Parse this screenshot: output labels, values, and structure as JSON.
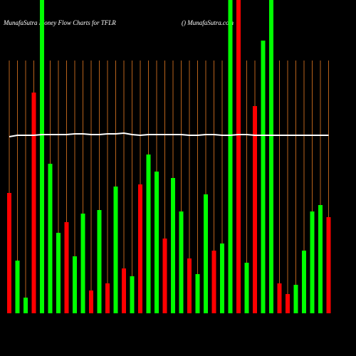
{
  "chart_data": {
    "type": "bar",
    "title": "MunafaSutra  Money Flow  Charts for TFLR",
    "subtitle": "() MunafaSutra.com",
    "categories": [
      null,
      null,
      null,
      null,
      null,
      null,
      null,
      null,
      null,
      null,
      null,
      null,
      null,
      null,
      null,
      null,
      null,
      null,
      null,
      null,
      null,
      null,
      null,
      null,
      null,
      null,
      null,
      null,
      null,
      null,
      null,
      null,
      null,
      null,
      null,
      null,
      null,
      null,
      null,
      null
    ],
    "values": [
      169,
      74,
      22,
      310,
      460,
      210,
      113,
      128,
      80,
      140,
      32,
      145,
      42,
      178,
      63,
      52,
      181,
      223,
      199,
      105,
      190,
      143,
      77,
      55,
      167,
      88,
      98,
      460,
      460,
      71,
      291,
      383,
      460,
      42,
      27,
      40,
      88,
      143,
      152,
      135
    ],
    "colors": [
      "#ff0000",
      "#00ff00",
      "#00ff00",
      "#ff0000",
      "#00ff00",
      "#00ff00",
      "#00ff00",
      "#ff0000",
      "#00ff00",
      "#00ff00",
      "#ff0000",
      "#00ff00",
      "#ff0000",
      "#00ff00",
      "#ff0000",
      "#00ff00",
      "#ff0000",
      "#00ff00",
      "#00ff00",
      "#ff0000",
      "#00ff00",
      "#00ff00",
      "#ff0000",
      "#00ff00",
      "#00ff00",
      "#ff0000",
      "#00ff00",
      "#00ff00",
      "#ff0000",
      "#00ff00",
      "#ff0000",
      "#00ff00",
      "#00ff00",
      "#ff0000",
      "#ff0000",
      "#00ff00",
      "#00ff00",
      "#00ff00",
      "#00ff00",
      "#ff0000"
    ],
    "line": {
      "color": "#ffffff",
      "values": [
        248,
        250,
        250,
        250,
        251,
        251,
        251,
        251,
        252,
        252,
        251,
        251,
        252,
        252,
        253,
        251,
        250,
        251,
        251,
        251,
        251,
        251,
        250,
        250,
        251,
        251,
        250,
        250,
        251,
        251,
        250,
        250,
        250,
        250,
        250,
        250,
        250,
        250,
        250,
        250
      ]
    },
    "ylim": [
      0,
      440
    ],
    "grid_color": "#b8621b"
  }
}
